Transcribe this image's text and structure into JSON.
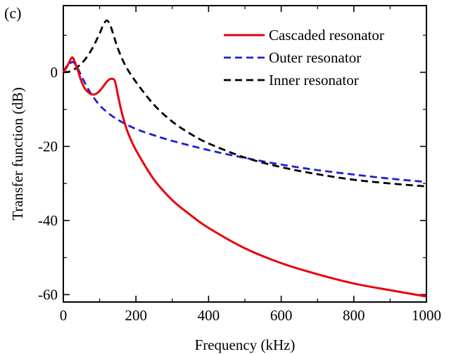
{
  "panel_label": "(c)",
  "colors": {
    "cascaded": "#e8000b",
    "outer": "#1f1fd6",
    "inner": "#000000",
    "axis": "#000000"
  },
  "chart_data": {
    "type": "line",
    "title": "",
    "xlabel": "Frequency (kHz)",
    "ylabel": "Transfer function (dB)",
    "xlim": [
      0,
      1000
    ],
    "ylim": [
      -62,
      18
    ],
    "xticks": [
      0,
      200,
      400,
      600,
      800,
      1000
    ],
    "yticks": [
      0,
      -20,
      -40,
      -60
    ],
    "grid": false,
    "legend_position": "top-right",
    "series": [
      {
        "name": "Cascaded resonator",
        "color": "#e8000b",
        "style": "solid",
        "x": [
          0,
          10,
          20,
          25,
          30,
          40,
          50,
          60,
          70,
          80,
          90,
          100,
          110,
          120,
          130,
          140,
          145,
          150,
          160,
          170,
          180,
          200,
          250,
          300,
          350,
          400,
          500,
          600,
          700,
          800,
          900,
          1000
        ],
        "y": [
          0,
          1.5,
          3.5,
          4.0,
          3.2,
          0.5,
          -2.5,
          -4.5,
          -5.5,
          -6.0,
          -5.8,
          -5.0,
          -3.8,
          -2.5,
          -1.8,
          -2.0,
          -3.5,
          -6.0,
          -10.5,
          -14.0,
          -16.8,
          -21.0,
          -29.0,
          -34.5,
          -38.5,
          -42.0,
          -47.5,
          -51.5,
          -54.5,
          -57.0,
          -58.8,
          -60.5
        ]
      },
      {
        "name": "Outer resonator",
        "color": "#1f1fd6",
        "style": "dashed",
        "x": [
          0,
          10,
          20,
          25,
          30,
          40,
          50,
          60,
          70,
          80,
          100,
          120,
          150,
          200,
          250,
          300,
          400,
          500,
          600,
          700,
          800,
          900,
          1000
        ],
        "y": [
          0,
          1.8,
          2.5,
          2.8,
          2.5,
          1.0,
          -1.0,
          -3.0,
          -4.8,
          -6.3,
          -8.9,
          -10.7,
          -12.8,
          -15.3,
          -17.0,
          -18.5,
          -21.0,
          -23.1,
          -24.9,
          -26.4,
          -27.6,
          -28.7,
          -29.6
        ]
      },
      {
        "name": "Inner resonator",
        "color": "#000000",
        "style": "dashed",
        "x": [
          0,
          20,
          40,
          60,
          80,
          100,
          110,
          120,
          130,
          140,
          150,
          170,
          200,
          250,
          300,
          350,
          400,
          500,
          600,
          700,
          800,
          900,
          1000
        ],
        "y": [
          0,
          0.3,
          1.5,
          3.5,
          6.5,
          10.5,
          12.8,
          14.0,
          12.5,
          9.5,
          6.5,
          2.0,
          -2.6,
          -8.8,
          -13.3,
          -16.6,
          -19.2,
          -23.0,
          -25.6,
          -27.5,
          -29.0,
          -30.0,
          -30.8
        ]
      }
    ]
  }
}
